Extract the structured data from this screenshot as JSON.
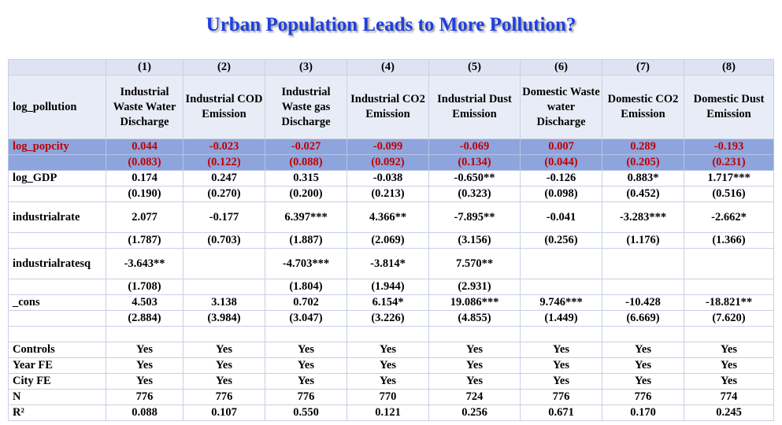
{
  "title": "Urban Population Leads to More Pollution?",
  "table": {
    "column_numbers": [
      "(1)",
      "(2)",
      "(3)",
      "(4)",
      "(5)",
      "(6)",
      "(7)",
      "(8)"
    ],
    "dependent_label": "log_pollution",
    "column_headers": [
      "Industrial Waste Water Discharge",
      "Industrial COD Emission",
      "Industrial Waste gas Discharge",
      "Industrial CO2 Emission",
      "Industrial Dust Emission",
      "Domestic Waste water Discharge",
      "Domestic CO2 Emission",
      "Domestic Dust Emission"
    ],
    "rows": [
      {
        "label": "log_popcity",
        "coef": [
          "0.044",
          "-0.023",
          "-0.027",
          "-0.099",
          "-0.069",
          "0.007",
          "0.289",
          "-0.193"
        ],
        "se": [
          "(0.083)",
          "(0.122)",
          "(0.088)",
          "(0.092)",
          "(0.134)",
          "(0.044)",
          "(0.205)",
          "(0.231)"
        ]
      },
      {
        "label": "log_GDP",
        "coef": [
          "0.174",
          "0.247",
          "0.315",
          "-0.038",
          "-0.650**",
          "-0.126",
          "0.883*",
          "1.717***"
        ],
        "se": [
          "(0.190)",
          "(0.270)",
          "(0.200)",
          "(0.213)",
          "(0.323)",
          "(0.098)",
          "(0.452)",
          "(0.516)"
        ]
      },
      {
        "label": "industrialrate",
        "coef": [
          "2.077",
          "-0.177",
          "6.397***",
          "4.366**",
          "-7.895**",
          "-0.041",
          "-3.283***",
          "-2.662*"
        ],
        "se": [
          "(1.787)",
          "(0.703)",
          "(1.887)",
          "(2.069)",
          "(3.156)",
          "(0.256)",
          "(1.176)",
          "(1.366)"
        ]
      },
      {
        "label": "industrialratesq",
        "coef": [
          "-3.643**",
          "",
          "-4.703***",
          "-3.814*",
          "7.570**",
          "",
          "",
          ""
        ],
        "se": [
          "(1.708)",
          "",
          "(1.804)",
          "(1.944)",
          "(2.931)",
          "",
          "",
          ""
        ]
      },
      {
        "label": "_cons",
        "coef": [
          "4.503",
          "3.138",
          "0.702",
          "6.154*",
          "19.086***",
          "9.746***",
          "-10.428",
          "-18.821**"
        ],
        "se": [
          "(2.884)",
          "(3.984)",
          "(3.047)",
          "(3.226)",
          "(4.855)",
          "(1.449)",
          "(6.669)",
          "(7.620)"
        ]
      }
    ],
    "footer_rows": [
      {
        "label": "Controls",
        "values": [
          "Yes",
          "Yes",
          "Yes",
          "Yes",
          "Yes",
          "Yes",
          "Yes",
          "Yes"
        ]
      },
      {
        "label": "Year FE",
        "values": [
          "Yes",
          "Yes",
          "Yes",
          "Yes",
          "Yes",
          "Yes",
          "Yes",
          "Yes"
        ]
      },
      {
        "label": "City FE",
        "values": [
          "Yes",
          "Yes",
          "Yes",
          "Yes",
          "Yes",
          "Yes",
          "Yes",
          "Yes"
        ]
      },
      {
        "label": "N",
        "values": [
          "776",
          "776",
          "776",
          "770",
          "724",
          "776",
          "776",
          "774"
        ]
      },
      {
        "label": "R²",
        "values": [
          "0.088",
          "0.107",
          "0.550",
          "0.121",
          "0.256",
          "0.671",
          "0.170",
          "0.245"
        ]
      }
    ],
    "highlight_color": "#8ea4dc",
    "highlight_text_color": "#c00000"
  }
}
